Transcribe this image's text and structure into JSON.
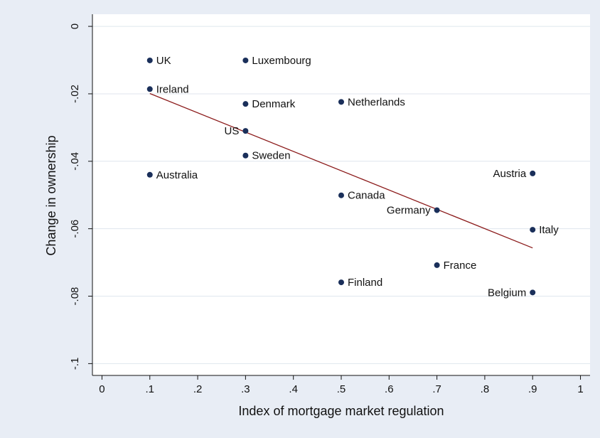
{
  "chart_data": {
    "type": "scatter",
    "x_label": "Index of mortgage market regulation",
    "y_label": "Change in ownership",
    "labels": [
      "UK",
      "Ireland",
      "Australia",
      "Luxembourg",
      "Denmark",
      "US",
      "Sweden",
      "Netherlands",
      "Canada",
      "Finland",
      "Germany",
      "France",
      "Austria",
      "Italy",
      "Belgium"
    ],
    "x": [
      0.1,
      0.1,
      0.1,
      0.3,
      0.3,
      0.3,
      0.3,
      0.5,
      0.5,
      0.5,
      0.7,
      0.7,
      0.9,
      0.9,
      0.9
    ],
    "values": [
      -0.0101,
      -0.0186,
      -0.044,
      -0.0101,
      -0.023,
      -0.031,
      -0.0383,
      -0.0224,
      -0.0501,
      -0.0759,
      -0.0545,
      -0.0708,
      -0.0436,
      -0.0603,
      -0.0789
    ],
    "color": "#1a2f5a",
    "fit": {
      "x": [
        0.1,
        0.9
      ],
      "values": [
        -0.0199,
        -0.0657
      ],
      "color": "#8b1a1a"
    },
    "xlim": [
      -0.02,
      1.02
    ],
    "ylim": [
      -0.1035,
      0.0036
    ],
    "xticks": [
      0,
      {
        "value": 0.1,
        "label": ".1"
      },
      {
        "value": 0.2,
        "label": ".2"
      },
      {
        "value": 0.3,
        "label": ".3"
      },
      {
        "value": 0.4,
        "label": ".4"
      },
      {
        "value": 0.5,
        "label": ".5"
      },
      {
        "value": 0.6,
        "label": ".6"
      },
      {
        "value": 0.7,
        "label": ".7"
      },
      {
        "value": 0.8,
        "label": ".8"
      },
      {
        "value": 0.9,
        "label": ".9"
      },
      1
    ],
    "yticks": [
      0,
      {
        "value": -0.02,
        "label": "-.02"
      },
      {
        "value": -0.04,
        "label": "-.04"
      },
      {
        "value": -0.06,
        "label": "-.06"
      },
      {
        "value": -0.08,
        "label": "-.08"
      },
      {
        "value": -0.1,
        "label": "-.1"
      }
    ],
    "grid": true
  }
}
